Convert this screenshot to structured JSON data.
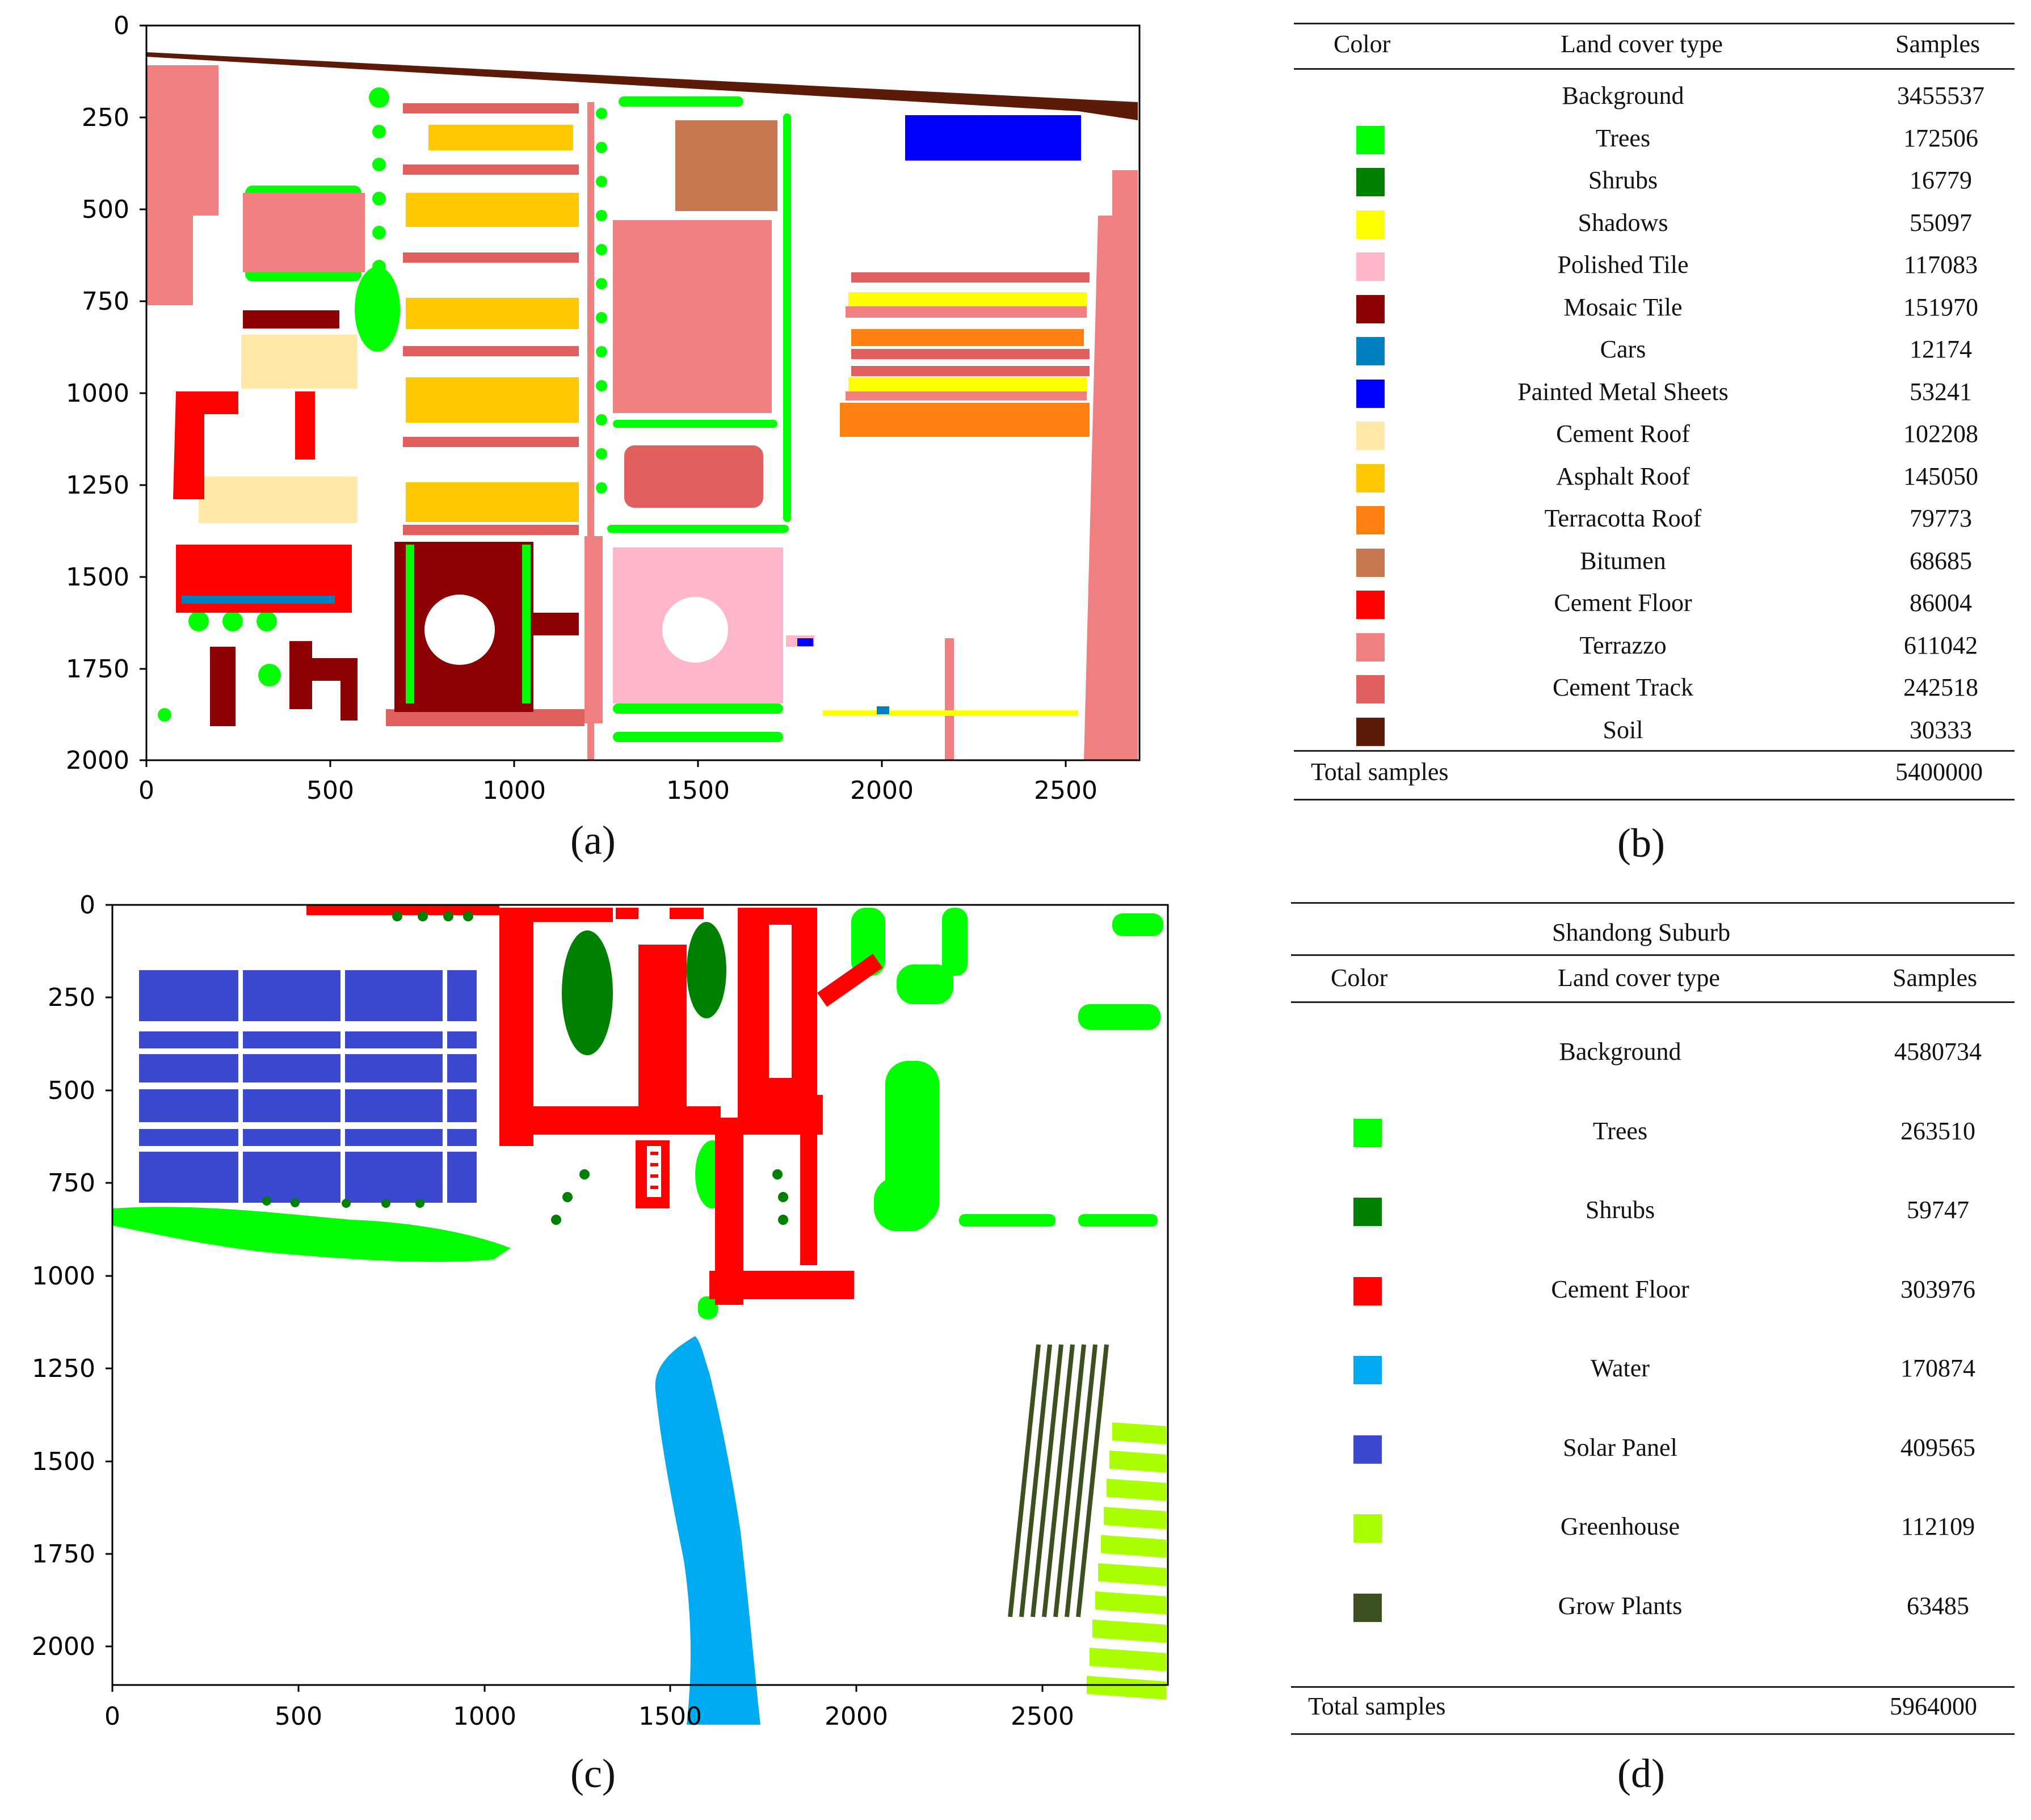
{
  "panels": {
    "a": {
      "caption": "(a)",
      "xticks": [
        "0",
        "500",
        "1000",
        "1500",
        "2000",
        "2500"
      ],
      "yticks": [
        "0",
        "250",
        "500",
        "750",
        "1000",
        "1250",
        "1500",
        "1750",
        "2000"
      ]
    },
    "b": {
      "caption": "(b)",
      "headers": {
        "color": "Color",
        "type": "Land cover type",
        "samples": "Samples"
      },
      "rows": [
        {
          "type": "Background",
          "samples": "3455537",
          "color": ""
        },
        {
          "type": "Trees",
          "samples": "172506",
          "color": "#00ff00"
        },
        {
          "type": "Shrubs",
          "samples": "16779",
          "color": "#008000"
        },
        {
          "type": "Shadows",
          "samples": "55097",
          "color": "#ffff00"
        },
        {
          "type": "Polished Tile",
          "samples": "117083",
          "color": "#ffb6c8"
        },
        {
          "type": "Mosaic Tile",
          "samples": "151970",
          "color": "#8b0000"
        },
        {
          "type": "Cars",
          "samples": "12174",
          "color": "#0080c0"
        },
        {
          "type": "Painted Metal Sheets",
          "samples": "53241",
          "color": "#0000ff"
        },
        {
          "type": "Cement Roof",
          "samples": "102208",
          "color": "#ffe8a8"
        },
        {
          "type": "Asphalt Roof",
          "samples": "145050",
          "color": "#ffc800"
        },
        {
          "type": "Terracotta Roof",
          "samples": "79773",
          "color": "#ff8010"
        },
        {
          "type": "Bitumen",
          "samples": "68685",
          "color": "#c87850"
        },
        {
          "type": "Cement Floor",
          "samples": "86004",
          "color": "#ff0000"
        },
        {
          "type": "Terrazzo",
          "samples": "611042",
          "color": "#f08080"
        },
        {
          "type": "Cement Track",
          "samples": "242518",
          "color": "#e06060"
        },
        {
          "type": "Soil",
          "samples": "30333",
          "color": "#5c1a08"
        }
      ],
      "total_label": "Total samples",
      "total_value": "5400000"
    },
    "c": {
      "caption": "(c)",
      "xticks": [
        "0",
        "500",
        "1000",
        "1500",
        "2000",
        "2500"
      ],
      "yticks": [
        "0",
        "250",
        "500",
        "750",
        "1000",
        "1250",
        "1500",
        "1750",
        "2000"
      ]
    },
    "d": {
      "caption": "(d)",
      "title": "Shandong Suburb",
      "headers": {
        "color": "Color",
        "type": "Land cover type",
        "samples": "Samples"
      },
      "rows": [
        {
          "type": "Background",
          "samples": "4580734",
          "color": ""
        },
        {
          "type": "Trees",
          "samples": "263510",
          "color": "#00ff00"
        },
        {
          "type": "Shrubs",
          "samples": "59747",
          "color": "#008000"
        },
        {
          "type": "Cement Floor",
          "samples": "303976",
          "color": "#ff0000"
        },
        {
          "type": "Water",
          "samples": "170874",
          "color": "#00aaf0"
        },
        {
          "type": "Solar Panel",
          "samples": "409565",
          "color": "#3c48d0"
        },
        {
          "type": "Greenhouse",
          "samples": "112109",
          "color": "#aaff00"
        },
        {
          "type": "Grow Plants",
          "samples": "63485",
          "color": "#3c5020"
        }
      ],
      "total_label": "Total samples",
      "total_value": "5964000"
    }
  }
}
